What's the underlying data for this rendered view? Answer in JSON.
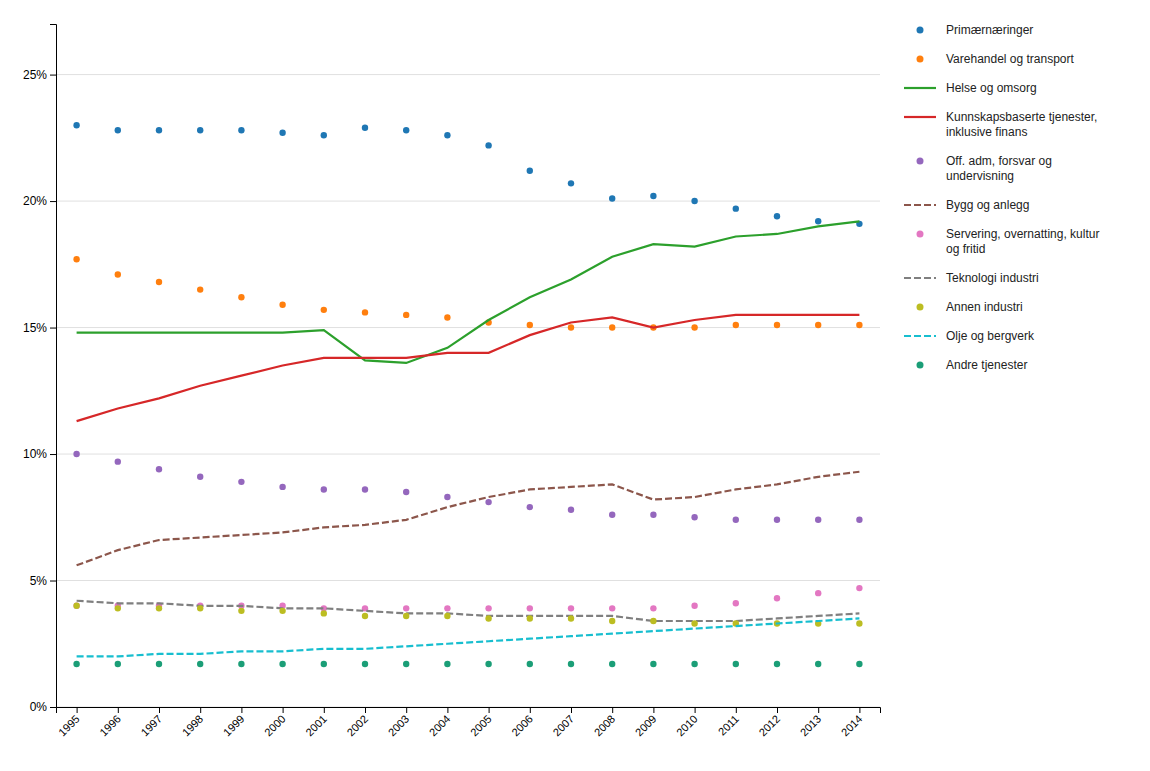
{
  "chart_data": {
    "type": "line",
    "x": [
      1995,
      1996,
      1997,
      1998,
      1999,
      2000,
      2001,
      2002,
      2003,
      2004,
      2005,
      2006,
      2007,
      2008,
      2009,
      2010,
      2011,
      2012,
      2013,
      2014
    ],
    "xlim": [
      1994.5,
      2014.5
    ],
    "xticks": [
      1995,
      1996,
      1997,
      1998,
      1999,
      2000,
      2001,
      2002,
      2003,
      2004,
      2005,
      2006,
      2007,
      2008,
      2009,
      2010,
      2011,
      2012,
      2013,
      2014
    ],
    "ylim": [
      0.0,
      0.27
    ],
    "yticks": [
      {
        "value": 0.0,
        "label": "0%"
      },
      {
        "value": 0.05,
        "label": "5%"
      },
      {
        "value": 0.1,
        "label": "10%"
      },
      {
        "value": 0.15,
        "label": "15%"
      },
      {
        "value": 0.2,
        "label": "20%"
      },
      {
        "value": 0.25,
        "label": "25%"
      }
    ],
    "grid": true,
    "legend": "right",
    "series": [
      {
        "name": "Primærnæringer",
        "line_style": "none",
        "marker": "circle",
        "values": [
          0.23,
          0.228,
          0.228,
          0.228,
          0.228,
          0.227,
          0.226,
          0.229,
          0.228,
          0.226,
          0.222,
          0.212,
          0.207,
          0.201,
          0.202,
          0.2,
          0.197,
          0.194,
          0.192,
          0.191
        ]
      },
      {
        "name": "Varehandel og transport",
        "line_style": "none",
        "marker": "circle",
        "values": [
          0.177,
          0.171,
          0.168,
          0.165,
          0.162,
          0.159,
          0.157,
          0.156,
          0.155,
          0.154,
          0.152,
          0.151,
          0.15,
          0.15,
          0.15,
          0.15,
          0.151,
          0.151,
          0.151,
          0.151
        ]
      },
      {
        "name": "Helse og omsorg",
        "line_style": "solid",
        "values": [
          0.148,
          0.148,
          0.148,
          0.148,
          0.148,
          0.148,
          0.149,
          0.137,
          0.136,
          0.142,
          0.153,
          0.162,
          0.169,
          0.178,
          0.183,
          0.182,
          0.186,
          0.187,
          0.19,
          0.192
        ]
      },
      {
        "name": "Kunnskapsbaserte tjenester,\ninklusive finans",
        "line_style": "solid",
        "values": [
          0.113,
          0.118,
          0.122,
          0.127,
          0.131,
          0.135,
          0.138,
          0.138,
          0.138,
          0.14,
          0.14,
          0.147,
          0.152,
          0.154,
          0.15,
          0.153,
          0.155,
          0.155,
          0.155,
          0.155
        ]
      },
      {
        "name": "Off. adm, forsvar og\nundervisning",
        "line_style": "none",
        "marker": "circle",
        "values": [
          0.1,
          0.097,
          0.094,
          0.091,
          0.089,
          0.087,
          0.086,
          0.086,
          0.085,
          0.083,
          0.081,
          0.079,
          0.078,
          0.076,
          0.076,
          0.075,
          0.074,
          0.074,
          0.074,
          0.074
        ]
      },
      {
        "name": "Bygg og anlegg",
        "line_style": "dashed",
        "values": [
          0.056,
          0.062,
          0.066,
          0.067,
          0.068,
          0.069,
          0.071,
          0.072,
          0.074,
          0.079,
          0.083,
          0.086,
          0.087,
          0.088,
          0.082,
          0.083,
          0.086,
          0.088,
          0.091,
          0.093
        ]
      },
      {
        "name": "Servering, overnatting, kultur\nog fritid",
        "line_style": "none",
        "marker": "circle",
        "values": [
          0.04,
          0.04,
          0.04,
          0.04,
          0.04,
          0.04,
          0.039,
          0.039,
          0.039,
          0.039,
          0.039,
          0.039,
          0.039,
          0.039,
          0.039,
          0.04,
          0.041,
          0.043,
          0.045,
          0.047
        ]
      },
      {
        "name": "Teknologi industri",
        "line_style": "dashed",
        "values": [
          0.042,
          0.041,
          0.041,
          0.04,
          0.04,
          0.039,
          0.039,
          0.038,
          0.037,
          0.037,
          0.036,
          0.036,
          0.036,
          0.036,
          0.034,
          0.034,
          0.034,
          0.035,
          0.036,
          0.037
        ]
      },
      {
        "name": "Annen industri",
        "line_style": "none",
        "marker": "circle",
        "values": [
          0.04,
          0.039,
          0.039,
          0.039,
          0.038,
          0.038,
          0.037,
          0.036,
          0.036,
          0.036,
          0.035,
          0.035,
          0.035,
          0.034,
          0.034,
          0.033,
          0.033,
          0.033,
          0.033,
          0.033
        ]
      },
      {
        "name": "Olje og bergverk",
        "line_style": "dashed",
        "values": [
          0.02,
          0.02,
          0.021,
          0.021,
          0.022,
          0.022,
          0.023,
          0.023,
          0.024,
          0.025,
          0.026,
          0.027,
          0.028,
          0.029,
          0.03,
          0.031,
          0.032,
          0.033,
          0.034,
          0.035
        ]
      },
      {
        "name": "Andre tjenester",
        "line_style": "none",
        "marker": "circle",
        "values": [
          0.017,
          0.017,
          0.017,
          0.017,
          0.017,
          0.017,
          0.017,
          0.017,
          0.017,
          0.017,
          0.017,
          0.017,
          0.017,
          0.017,
          0.017,
          0.017,
          0.017,
          0.017,
          0.017,
          0.017
        ]
      }
    ]
  }
}
